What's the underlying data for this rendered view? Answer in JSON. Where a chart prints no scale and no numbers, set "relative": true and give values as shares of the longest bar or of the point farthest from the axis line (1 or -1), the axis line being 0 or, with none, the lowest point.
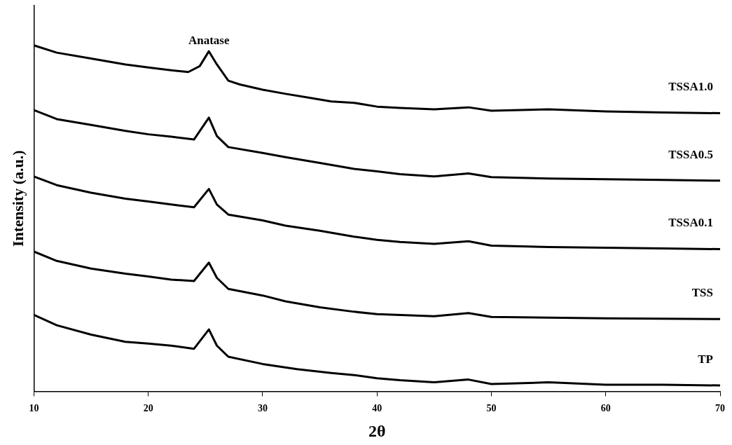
{
  "chart_data": {
    "type": "line",
    "relative": true,
    "xlabel": "2θ",
    "ylabel": "Intensity (a.u.)",
    "xlim": [
      10,
      70
    ],
    "xticks": [
      10,
      20,
      30,
      40,
      50,
      60,
      70
    ],
    "grid": false,
    "legend": false,
    "marker": "none",
    "line_style": "solid",
    "annotations": [
      {
        "text": "Anatase",
        "x": 25.3,
        "y": 0.983
      }
    ],
    "series": [
      {
        "name": "TSSA1.0",
        "color": "#000000",
        "x": [
          10,
          12,
          15,
          18,
          20,
          22,
          23.5,
          24.5,
          25.3,
          26,
          27,
          28,
          30,
          32,
          34,
          36,
          38,
          40,
          42,
          45,
          48,
          50,
          55,
          60,
          65,
          70
        ],
        "values": [
          1,
          0.979,
          0.962,
          0.945,
          0.936,
          0.928,
          0.923,
          0.94,
          0.983,
          0.945,
          0.898,
          0.887,
          0.872,
          0.86,
          0.849,
          0.838,
          0.834,
          0.823,
          0.819,
          0.815,
          0.821,
          0.811,
          0.815,
          0.809,
          0.806,
          0.804
        ]
      },
      {
        "name": "TSSA0.5",
        "color": "#000000",
        "x": [
          10,
          12,
          15,
          18,
          20,
          22,
          24,
          25.3,
          26,
          27,
          30,
          32,
          35,
          38,
          40,
          42,
          45,
          48,
          50,
          55,
          60,
          65,
          70
        ],
        "values": [
          0.813,
          0.787,
          0.77,
          0.753,
          0.743,
          0.736,
          0.728,
          0.791,
          0.738,
          0.706,
          0.689,
          0.677,
          0.66,
          0.643,
          0.636,
          0.628,
          0.621,
          0.63,
          0.619,
          0.615,
          0.613,
          0.611,
          0.609
        ]
      },
      {
        "name": "TSSA0.1",
        "color": "#000000",
        "x": [
          10,
          12,
          15,
          18,
          20,
          22,
          24,
          25.3,
          26,
          27,
          30,
          32,
          35,
          38,
          40,
          42,
          45,
          48,
          50,
          55,
          60,
          65,
          70
        ],
        "values": [
          0.621,
          0.596,
          0.574,
          0.557,
          0.549,
          0.54,
          0.532,
          0.585,
          0.54,
          0.511,
          0.494,
          0.479,
          0.464,
          0.447,
          0.438,
          0.432,
          0.426,
          0.434,
          0.421,
          0.417,
          0.415,
          0.413,
          0.411
        ]
      },
      {
        "name": "TSS",
        "color": "#000000",
        "x": [
          10,
          12,
          15,
          18,
          20,
          22,
          24,
          25.3,
          26,
          27,
          30,
          32,
          35,
          38,
          40,
          45,
          48,
          50,
          55,
          60,
          70
        ],
        "values": [
          0.404,
          0.377,
          0.355,
          0.34,
          0.332,
          0.323,
          0.319,
          0.372,
          0.328,
          0.296,
          0.277,
          0.26,
          0.243,
          0.23,
          0.223,
          0.217,
          0.226,
          0.215,
          0.213,
          0.211,
          0.209
        ]
      },
      {
        "name": "TP",
        "color": "#000000",
        "x": [
          10,
          12,
          15,
          18,
          20,
          22,
          24,
          25.3,
          26,
          27,
          30,
          33,
          36,
          38,
          40,
          42,
          45,
          48,
          50,
          55,
          60,
          65,
          70
        ],
        "values": [
          0.221,
          0.191,
          0.164,
          0.143,
          0.138,
          0.132,
          0.123,
          0.179,
          0.132,
          0.1,
          0.079,
          0.064,
          0.053,
          0.047,
          0.038,
          0.032,
          0.026,
          0.034,
          0.021,
          0.026,
          0.019,
          0.019,
          0.017
        ]
      }
    ]
  }
}
